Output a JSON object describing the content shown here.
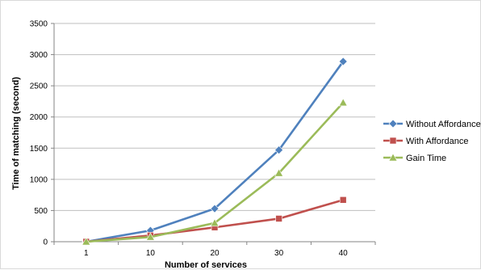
{
  "chart_data": {
    "type": "line",
    "title": "",
    "xlabel": "Number of services",
    "ylabel": "Time of matching (second)",
    "categories": [
      "1",
      "10",
      "20",
      "30",
      "40"
    ],
    "ylim": [
      0,
      3500
    ],
    "yticks": [
      0,
      500,
      1000,
      1500,
      2000,
      2500,
      3000,
      3500
    ],
    "grid": true,
    "legend_position": "right",
    "series": [
      {
        "name": "Without Affordance",
        "values": [
          0,
          180,
          530,
          1470,
          2890
        ],
        "color": "#4f81bd",
        "marker": "diamond"
      },
      {
        "name": "With Affordance",
        "values": [
          0,
          100,
          230,
          370,
          670
        ],
        "color": "#c0504d",
        "marker": "square"
      },
      {
        "name": "Gain Time",
        "values": [
          0,
          75,
          300,
          1100,
          2230
        ],
        "color": "#9bbb59",
        "marker": "triangle"
      }
    ]
  }
}
